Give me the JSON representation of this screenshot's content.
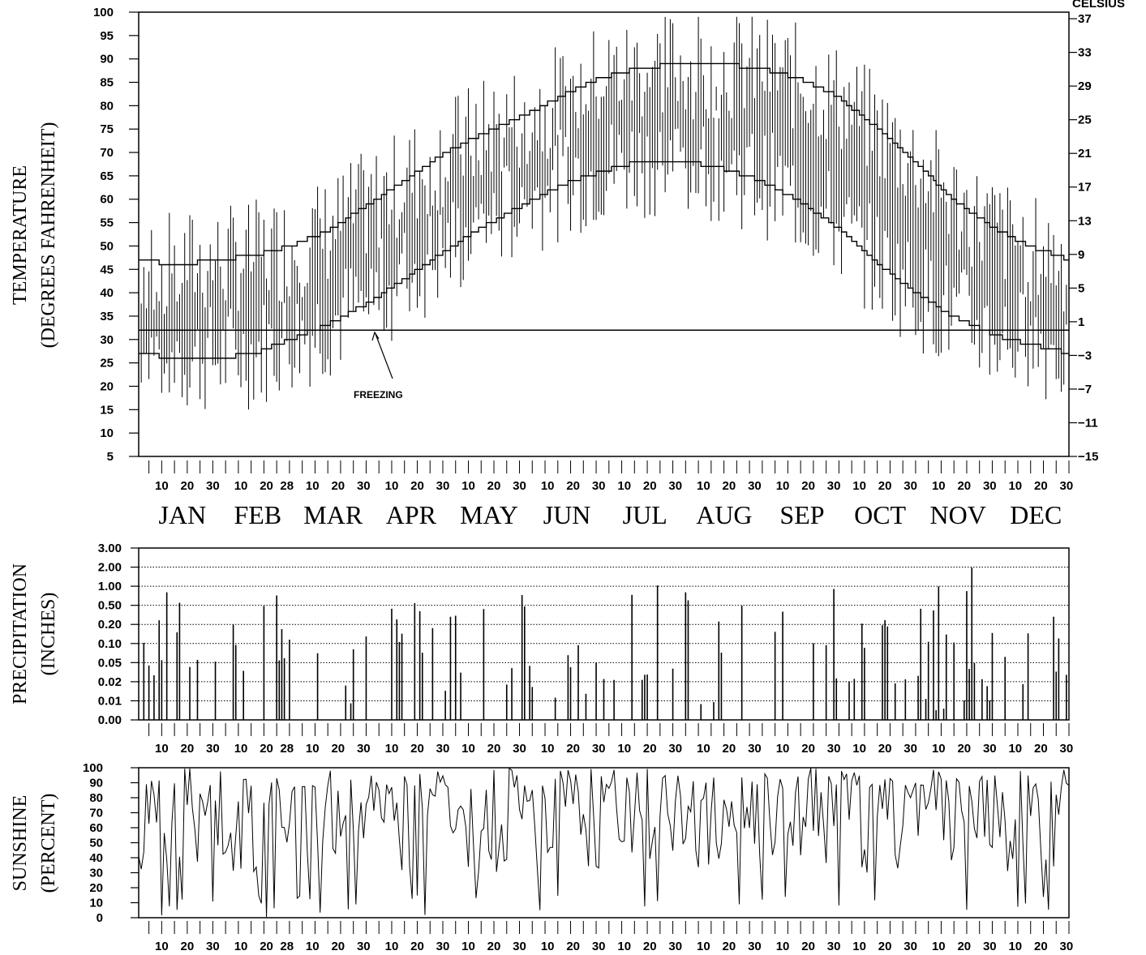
{
  "chart_data": [
    {
      "type": "line",
      "panel": "temperature",
      "ylabel": "TEMPERATURE",
      "ylabel_sub": "(DEGREES FAHRENHEIT)",
      "right_axis_label": "CELSIUS",
      "ylim": [
        5,
        100
      ],
      "y_ticks": [
        5,
        10,
        15,
        20,
        25,
        30,
        35,
        40,
        45,
        50,
        55,
        60,
        65,
        70,
        75,
        80,
        85,
        90,
        95,
        100
      ],
      "right_ticks_celsius": [
        37,
        33,
        29,
        25,
        21,
        17,
        13,
        9,
        5,
        1,
        -3,
        -7,
        -11,
        -15
      ],
      "x_tick_labels": [
        "10",
        "20",
        "30",
        "10",
        "20",
        "28",
        "10",
        "20",
        "30",
        "10",
        "20",
        "30",
        "10",
        "20",
        "30",
        "10",
        "20",
        "30",
        "10",
        "20",
        "30",
        "10",
        "20",
        "30",
        "10",
        "20",
        "30",
        "10",
        "20",
        "30",
        "10",
        "20",
        "30",
        "10",
        "20",
        "30"
      ],
      "months": [
        "JAN",
        "FEB",
        "MAR",
        "APR",
        "MAY",
        "JUN",
        "JUL",
        "AUG",
        "SEP",
        "OCT",
        "NOV",
        "DEC"
      ],
      "annotation": "FREEZING",
      "freezing_line": 32,
      "series": [
        {
          "name": "normal maximum",
          "x_days": [
            1,
            15,
            32,
            46,
            60,
            74,
            91,
            105,
            121,
            135,
            152,
            166,
            182,
            196,
            213,
            227,
            244,
            258,
            274,
            288,
            305,
            319,
            335,
            349,
            365
          ],
          "values": [
            47,
            46,
            47,
            48,
            50,
            53,
            59,
            64,
            70,
            74,
            78,
            82,
            86,
            88,
            89,
            89,
            88,
            86,
            82,
            76,
            68,
            60,
            54,
            50,
            47
          ]
        },
        {
          "name": "normal minimum",
          "x_days": [
            1,
            15,
            32,
            46,
            60,
            74,
            91,
            105,
            121,
            135,
            152,
            166,
            182,
            196,
            213,
            227,
            244,
            258,
            274,
            288,
            305,
            319,
            335,
            349,
            365
          ],
          "values": [
            27,
            26,
            26,
            27,
            30,
            33,
            38,
            43,
            49,
            54,
            59,
            63,
            66,
            68,
            68,
            67,
            64,
            60,
            54,
            47,
            40,
            35,
            31,
            29,
            27
          ]
        }
      ],
      "daily_range_note": "vertical bars show daily high-low range for each day of the year"
    },
    {
      "type": "bar",
      "panel": "precipitation",
      "ylabel": "PRECIPITATION",
      "ylabel_sub": "(INCHES)",
      "y_tick_labels": [
        "3.00",
        "2.00",
        "1.00",
        "0.50",
        "0.20",
        "0.10",
        "0.05",
        "0.02",
        "0.01",
        "0.00"
      ],
      "grid": "horizontal dotted",
      "x_tick_labels": [
        "10",
        "20",
        "30",
        "10",
        "20",
        "28",
        "10",
        "20",
        "30",
        "10",
        "20",
        "30",
        "10",
        "20",
        "30",
        "10",
        "20",
        "30",
        "10",
        "20",
        "30",
        "10",
        "20",
        "30",
        "10",
        "20",
        "30",
        "10",
        "20",
        "30",
        "10",
        "20",
        "30",
        "10",
        "20",
        "30"
      ]
    },
    {
      "type": "line",
      "panel": "sunshine",
      "ylabel": "SUNSHINE",
      "ylabel_sub": "(PERCENT)",
      "ylim": [
        0,
        100
      ],
      "y_ticks": [
        0,
        10,
        20,
        30,
        40,
        50,
        60,
        70,
        80,
        90,
        100
      ],
      "x_tick_labels": [
        "10",
        "20",
        "30",
        "10",
        "20",
        "28",
        "10",
        "20",
        "30",
        "10",
        "20",
        "30",
        "10",
        "20",
        "30",
        "10",
        "20",
        "30",
        "10",
        "20",
        "30",
        "10",
        "20",
        "30",
        "10",
        "20",
        "30",
        "10",
        "20",
        "30",
        "10",
        "20",
        "30",
        "10",
        "20",
        "30"
      ]
    }
  ]
}
